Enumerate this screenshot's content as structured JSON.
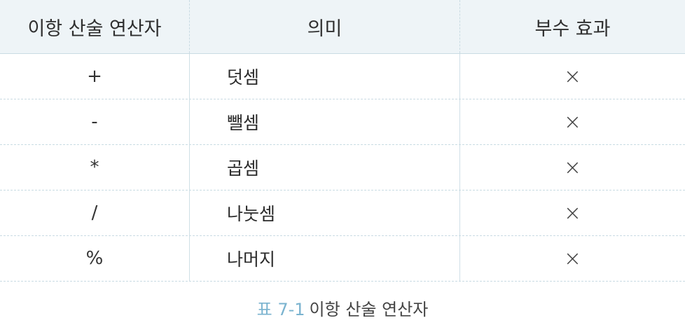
{
  "table": {
    "headers": {
      "operator": "이항 산술 연산자",
      "meaning": "의미",
      "side_effect": "부수 효과"
    },
    "rows": [
      {
        "operator": "+",
        "meaning": "덧셈",
        "side_effect": "×"
      },
      {
        "operator": "-",
        "meaning": "뺄셈",
        "side_effect": "×"
      },
      {
        "operator": "*",
        "meaning": "곱셈",
        "side_effect": "×"
      },
      {
        "operator": "/",
        "meaning": "나눗셈",
        "side_effect": "×"
      },
      {
        "operator": "%",
        "meaning": "나머지",
        "side_effect": "×"
      }
    ]
  },
  "caption": {
    "number": "표 7-1",
    "text": "이항 산술 연산자"
  },
  "colors": {
    "header_bg": "#eef4f7",
    "grid_line": "#c9dbe3",
    "caption_number": "#7ab3cf"
  }
}
